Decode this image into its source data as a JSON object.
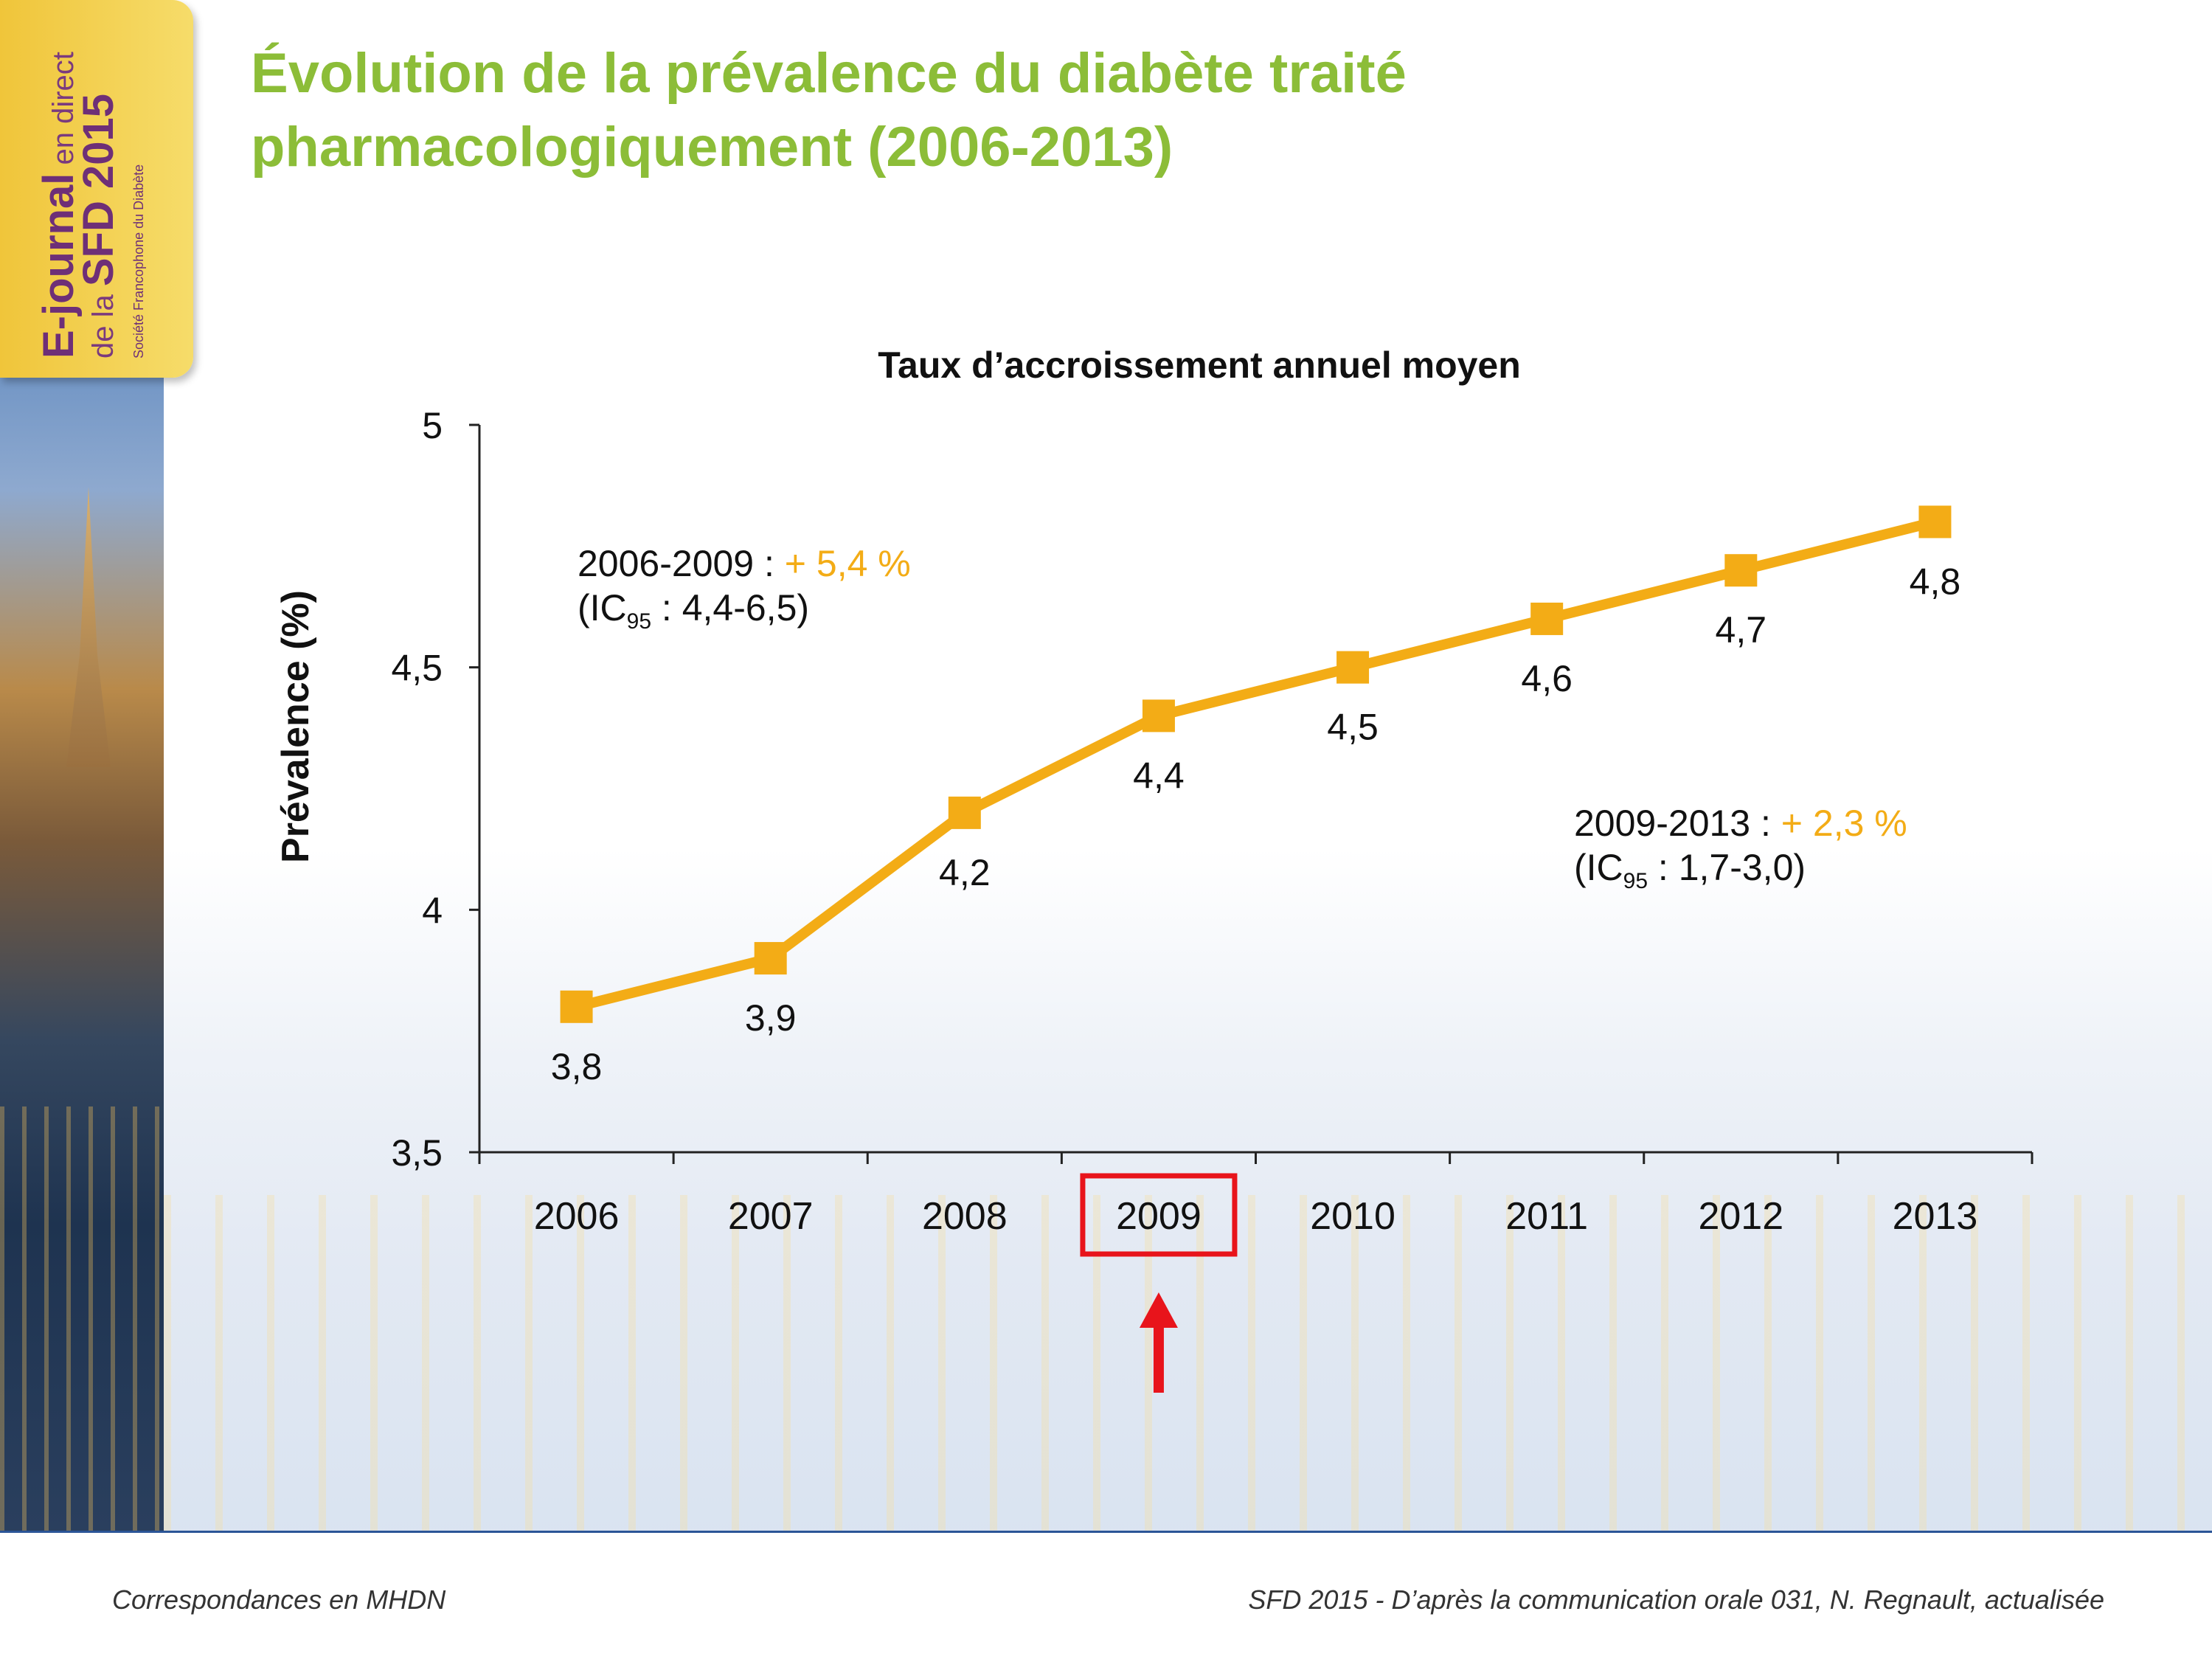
{
  "header": {
    "title_line1": "Évolution de la prévalence du diabète traité",
    "title_line2": "pharmacologiquement (2006-2013)"
  },
  "logo": {
    "line1_a": "E-journal",
    "line1_b": "en direct",
    "line2_a": "de la",
    "line2_b": "SFD 2015",
    "line3": "Société Francophone du Diabète"
  },
  "annotations": {
    "a1_prefix": "2006-2009 : ",
    "a1_value": "+ 5,4 %",
    "a1_ci_prefix": "(IC",
    "a1_ci_sub": "95",
    "a1_ci_rest": " : 4,4-6,5)",
    "a2_prefix": "2009-2013 : ",
    "a2_value": "+ 2,3 %",
    "a2_ci_prefix": "(IC",
    "a2_ci_sub": "95",
    "a2_ci_rest": " : 1,7-3,0)"
  },
  "footer": {
    "left": "Correspondances en MHDN",
    "right": "SFD 2015 - D’après la communication orale 031, N. Regnault, actualisée"
  },
  "colors": {
    "title_green": "#8cbd38",
    "series_orange": "#f3ac16",
    "highlight_red": "#e8141b"
  },
  "chart_data": {
    "type": "line",
    "title": "Taux d’accroissement annuel moyen",
    "xlabel": "",
    "ylabel": "Prévalence (%)",
    "categories": [
      "2006",
      "2007",
      "2008",
      "2009",
      "2010",
      "2011",
      "2012",
      "2013"
    ],
    "series": [
      {
        "values": [
          3.8,
          3.9,
          4.2,
          4.4,
          4.5,
          4.6,
          4.7,
          4.8
        ]
      }
    ],
    "data_labels": [
      "3,8",
      "3,9",
      "4,2",
      "4,4",
      "4,5",
      "4,6",
      "4,7",
      "4,8"
    ],
    "ylim": [
      3.5,
      5
    ],
    "yticks": [
      3.5,
      4,
      4.5,
      5
    ],
    "ytick_labels": [
      "3,5",
      "4",
      "4,5",
      "5"
    ],
    "grid": false,
    "highlighted_category": "2009"
  }
}
